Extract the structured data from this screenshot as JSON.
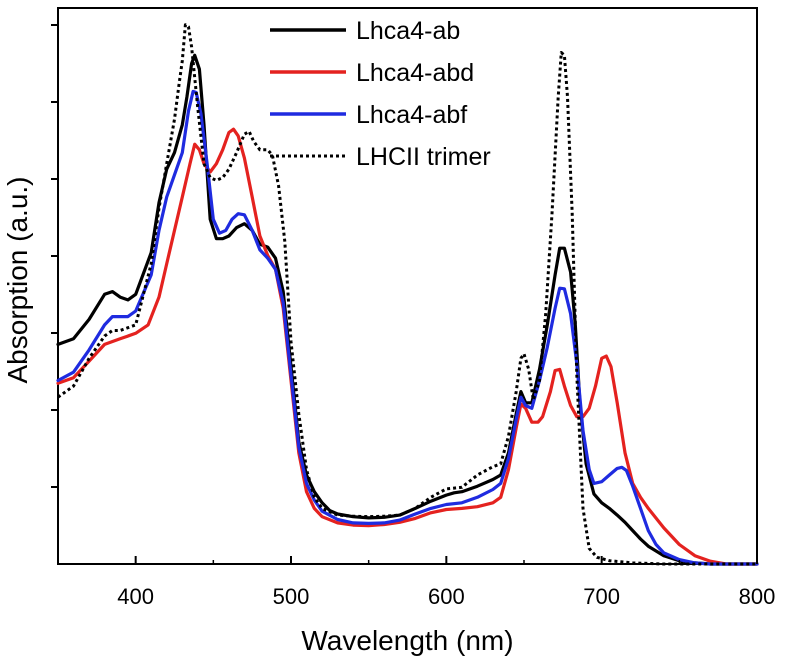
{
  "chart_data": {
    "type": "line",
    "title": "",
    "xlabel": "Wavelength (nm)",
    "ylabel": "Absorption (a.u.)",
    "xlim": [
      350,
      800
    ],
    "ylim": [
      0,
      1.0
    ],
    "x_ticks": [
      400,
      500,
      600,
      700,
      800
    ],
    "y_ticks_count": 7,
    "y_tick_labels_shown": false,
    "grid": false,
    "legend_position": "top-center",
    "series": [
      {
        "name": "Lhca4-ab",
        "color": "#000000",
        "style": "solid",
        "points": [
          [
            350,
            0.395
          ],
          [
            360,
            0.405
          ],
          [
            370,
            0.44
          ],
          [
            380,
            0.485
          ],
          [
            385,
            0.49
          ],
          [
            390,
            0.48
          ],
          [
            395,
            0.475
          ],
          [
            400,
            0.485
          ],
          [
            410,
            0.56
          ],
          [
            415,
            0.65
          ],
          [
            420,
            0.71
          ],
          [
            425,
            0.74
          ],
          [
            430,
            0.79
          ],
          [
            433,
            0.84
          ],
          [
            436,
            0.9
          ],
          [
            438,
            0.915
          ],
          [
            441,
            0.89
          ],
          [
            444,
            0.79
          ],
          [
            448,
            0.62
          ],
          [
            452,
            0.585
          ],
          [
            456,
            0.585
          ],
          [
            460,
            0.59
          ],
          [
            465,
            0.605
          ],
          [
            470,
            0.612
          ],
          [
            475,
            0.6
          ],
          [
            480,
            0.575
          ],
          [
            485,
            0.57
          ],
          [
            490,
            0.55
          ],
          [
            495,
            0.49
          ],
          [
            500,
            0.355
          ],
          [
            505,
            0.22
          ],
          [
            510,
            0.16
          ],
          [
            515,
            0.13
          ],
          [
            520,
            0.11
          ],
          [
            525,
            0.096
          ],
          [
            530,
            0.09
          ],
          [
            540,
            0.085
          ],
          [
            550,
            0.083
          ],
          [
            560,
            0.084
          ],
          [
            570,
            0.088
          ],
          [
            580,
            0.1
          ],
          [
            590,
            0.113
          ],
          [
            600,
            0.124
          ],
          [
            605,
            0.128
          ],
          [
            610,
            0.13
          ],
          [
            620,
            0.14
          ],
          [
            630,
            0.152
          ],
          [
            635,
            0.16
          ],
          [
            640,
            0.2
          ],
          [
            645,
            0.27
          ],
          [
            648,
            0.31
          ],
          [
            651,
            0.29
          ],
          [
            655,
            0.29
          ],
          [
            660,
            0.35
          ],
          [
            665,
            0.43
          ],
          [
            670,
            0.52
          ],
          [
            673,
            0.568
          ],
          [
            676,
            0.568
          ],
          [
            680,
            0.525
          ],
          [
            683,
            0.43
          ],
          [
            686,
            0.29
          ],
          [
            690,
            0.18
          ],
          [
            695,
            0.126
          ],
          [
            700,
            0.11
          ],
          [
            705,
            0.1
          ],
          [
            710,
            0.088
          ],
          [
            715,
            0.075
          ],
          [
            720,
            0.06
          ],
          [
            725,
            0.045
          ],
          [
            730,
            0.032
          ],
          [
            740,
            0.015
          ],
          [
            750,
            0.006
          ],
          [
            760,
            0.002
          ],
          [
            770,
            0.0
          ],
          [
            800,
            0.0
          ]
        ]
      },
      {
        "name": "Lhca4-abd",
        "color": "#e4221f",
        "style": "solid",
        "points": [
          [
            350,
            0.325
          ],
          [
            360,
            0.335
          ],
          [
            370,
            0.365
          ],
          [
            380,
            0.395
          ],
          [
            390,
            0.405
          ],
          [
            400,
            0.415
          ],
          [
            408,
            0.43
          ],
          [
            415,
            0.48
          ],
          [
            420,
            0.54
          ],
          [
            425,
            0.6
          ],
          [
            430,
            0.66
          ],
          [
            435,
            0.72
          ],
          [
            438,
            0.755
          ],
          [
            441,
            0.745
          ],
          [
            444,
            0.72
          ],
          [
            448,
            0.705
          ],
          [
            452,
            0.72
          ],
          [
            456,
            0.745
          ],
          [
            460,
            0.776
          ],
          [
            463,
            0.782
          ],
          [
            466,
            0.77
          ],
          [
            470,
            0.73
          ],
          [
            475,
            0.66
          ],
          [
            480,
            0.59
          ],
          [
            485,
            0.555
          ],
          [
            490,
            0.53
          ],
          [
            495,
            0.46
          ],
          [
            500,
            0.33
          ],
          [
            505,
            0.2
          ],
          [
            510,
            0.13
          ],
          [
            515,
            0.1
          ],
          [
            520,
            0.085
          ],
          [
            530,
            0.074
          ],
          [
            540,
            0.07
          ],
          [
            550,
            0.069
          ],
          [
            560,
            0.071
          ],
          [
            570,
            0.075
          ],
          [
            580,
            0.082
          ],
          [
            590,
            0.092
          ],
          [
            600,
            0.098
          ],
          [
            610,
            0.1
          ],
          [
            620,
            0.103
          ],
          [
            630,
            0.11
          ],
          [
            635,
            0.12
          ],
          [
            640,
            0.17
          ],
          [
            645,
            0.245
          ],
          [
            648,
            0.288
          ],
          [
            651,
            0.28
          ],
          [
            655,
            0.255
          ],
          [
            659,
            0.255
          ],
          [
            662,
            0.265
          ],
          [
            667,
            0.31
          ],
          [
            670,
            0.348
          ],
          [
            673,
            0.35
          ],
          [
            676,
            0.32
          ],
          [
            680,
            0.285
          ],
          [
            684,
            0.265
          ],
          [
            688,
            0.265
          ],
          [
            692,
            0.28
          ],
          [
            696,
            0.32
          ],
          [
            700,
            0.37
          ],
          [
            703,
            0.374
          ],
          [
            706,
            0.355
          ],
          [
            710,
            0.29
          ],
          [
            715,
            0.2
          ],
          [
            720,
            0.145
          ],
          [
            725,
            0.12
          ],
          [
            730,
            0.1
          ],
          [
            740,
            0.065
          ],
          [
            750,
            0.035
          ],
          [
            760,
            0.015
          ],
          [
            770,
            0.005
          ],
          [
            780,
            0.0
          ],
          [
            800,
            0.0
          ]
        ]
      },
      {
        "name": "Lhca4-abf",
        "color": "#1f2be0",
        "style": "solid",
        "points": [
          [
            350,
            0.33
          ],
          [
            360,
            0.345
          ],
          [
            370,
            0.385
          ],
          [
            380,
            0.43
          ],
          [
            385,
            0.445
          ],
          [
            390,
            0.445
          ],
          [
            395,
            0.445
          ],
          [
            400,
            0.455
          ],
          [
            410,
            0.52
          ],
          [
            415,
            0.6
          ],
          [
            420,
            0.66
          ],
          [
            425,
            0.7
          ],
          [
            430,
            0.74
          ],
          [
            434,
            0.815
          ],
          [
            437,
            0.85
          ],
          [
            439,
            0.848
          ],
          [
            442,
            0.81
          ],
          [
            446,
            0.72
          ],
          [
            450,
            0.62
          ],
          [
            454,
            0.595
          ],
          [
            458,
            0.6
          ],
          [
            462,
            0.62
          ],
          [
            466,
            0.63
          ],
          [
            470,
            0.628
          ],
          [
            475,
            0.6
          ],
          [
            480,
            0.565
          ],
          [
            485,
            0.55
          ],
          [
            490,
            0.53
          ],
          [
            495,
            0.47
          ],
          [
            500,
            0.34
          ],
          [
            505,
            0.21
          ],
          [
            510,
            0.145
          ],
          [
            515,
            0.115
          ],
          [
            520,
            0.095
          ],
          [
            530,
            0.08
          ],
          [
            540,
            0.074
          ],
          [
            550,
            0.073
          ],
          [
            560,
            0.074
          ],
          [
            570,
            0.079
          ],
          [
            580,
            0.09
          ],
          [
            590,
            0.1
          ],
          [
            600,
            0.107
          ],
          [
            610,
            0.11
          ],
          [
            620,
            0.12
          ],
          [
            630,
            0.134
          ],
          [
            635,
            0.145
          ],
          [
            640,
            0.19
          ],
          [
            645,
            0.26
          ],
          [
            648,
            0.3
          ],
          [
            651,
            0.285
          ],
          [
            655,
            0.28
          ],
          [
            660,
            0.33
          ],
          [
            665,
            0.39
          ],
          [
            670,
            0.46
          ],
          [
            673,
            0.496
          ],
          [
            676,
            0.495
          ],
          [
            680,
            0.45
          ],
          [
            684,
            0.36
          ],
          [
            688,
            0.24
          ],
          [
            692,
            0.17
          ],
          [
            695,
            0.145
          ],
          [
            700,
            0.148
          ],
          [
            705,
            0.16
          ],
          [
            710,
            0.172
          ],
          [
            713,
            0.174
          ],
          [
            716,
            0.168
          ],
          [
            720,
            0.14
          ],
          [
            725,
            0.1
          ],
          [
            730,
            0.06
          ],
          [
            735,
            0.035
          ],
          [
            740,
            0.02
          ],
          [
            750,
            0.008
          ],
          [
            760,
            0.002
          ],
          [
            770,
            0.0
          ],
          [
            800,
            0.0
          ]
        ]
      },
      {
        "name": "LHCII trimer",
        "color": "#000000",
        "style": "dotted",
        "points": [
          [
            350,
            0.3
          ],
          [
            360,
            0.32
          ],
          [
            370,
            0.37
          ],
          [
            380,
            0.41
          ],
          [
            385,
            0.42
          ],
          [
            390,
            0.42
          ],
          [
            400,
            0.43
          ],
          [
            410,
            0.54
          ],
          [
            415,
            0.64
          ],
          [
            420,
            0.72
          ],
          [
            425,
            0.8
          ],
          [
            428,
            0.865
          ],
          [
            430,
            0.905
          ],
          [
            432,
            0.97
          ],
          [
            434,
            0.966
          ],
          [
            436,
            0.93
          ],
          [
            440,
            0.82
          ],
          [
            444,
            0.72
          ],
          [
            448,
            0.695
          ],
          [
            452,
            0.69
          ],
          [
            456,
            0.695
          ],
          [
            460,
            0.71
          ],
          [
            465,
            0.74
          ],
          [
            470,
            0.773
          ],
          [
            473,
            0.778
          ],
          [
            476,
            0.76
          ],
          [
            480,
            0.745
          ],
          [
            485,
            0.745
          ],
          [
            488,
            0.735
          ],
          [
            492,
            0.68
          ],
          [
            496,
            0.58
          ],
          [
            500,
            0.4
          ],
          [
            505,
            0.27
          ],
          [
            510,
            0.17
          ],
          [
            515,
            0.12
          ],
          [
            520,
            0.1
          ],
          [
            530,
            0.088
          ],
          [
            540,
            0.086
          ],
          [
            550,
            0.085
          ],
          [
            560,
            0.086
          ],
          [
            570,
            0.088
          ],
          [
            580,
            0.1
          ],
          [
            590,
            0.12
          ],
          [
            600,
            0.135
          ],
          [
            610,
            0.138
          ],
          [
            620,
            0.16
          ],
          [
            630,
            0.175
          ],
          [
            635,
            0.18
          ],
          [
            640,
            0.23
          ],
          [
            645,
            0.31
          ],
          [
            648,
            0.37
          ],
          [
            650,
            0.378
          ],
          [
            653,
            0.35
          ],
          [
            656,
            0.295
          ],
          [
            660,
            0.33
          ],
          [
            664,
            0.45
          ],
          [
            668,
            0.63
          ],
          [
            672,
            0.84
          ],
          [
            674,
            0.92
          ],
          [
            676,
            0.915
          ],
          [
            678,
            0.84
          ],
          [
            681,
            0.63
          ],
          [
            684,
            0.34
          ],
          [
            688,
            0.1
          ],
          [
            692,
            0.028
          ],
          [
            697,
            0.012
          ],
          [
            705,
            0.006
          ],
          [
            720,
            0.002
          ],
          [
            740,
            0.0
          ],
          [
            800,
            0.0
          ]
        ]
      }
    ]
  }
}
